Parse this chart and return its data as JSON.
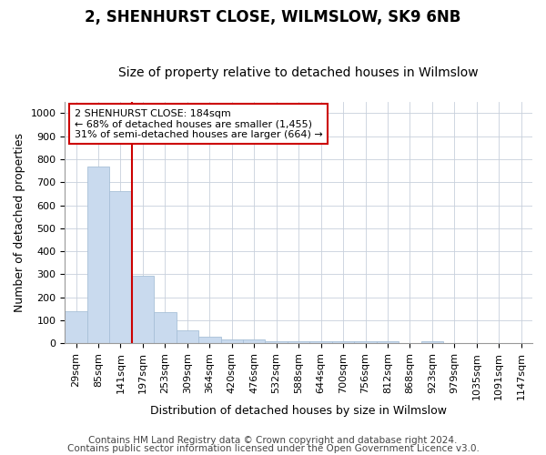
{
  "title": "2, SHENHURST CLOSE, WILMSLOW, SK9 6NB",
  "subtitle": "Size of property relative to detached houses in Wilmslow",
  "xlabel": "Distribution of detached houses by size in Wilmslow",
  "ylabel": "Number of detached properties",
  "bar_labels": [
    "29sqm",
    "85sqm",
    "141sqm",
    "197sqm",
    "253sqm",
    "309sqm",
    "364sqm",
    "420sqm",
    "476sqm",
    "532sqm",
    "588sqm",
    "644sqm",
    "700sqm",
    "756sqm",
    "812sqm",
    "868sqm",
    "923sqm",
    "979sqm",
    "1035sqm",
    "1091sqm",
    "1147sqm"
  ],
  "bar_values": [
    140,
    770,
    660,
    295,
    135,
    55,
    30,
    18,
    18,
    10,
    8,
    8,
    8,
    8,
    8,
    0,
    8,
    0,
    0,
    0,
    0
  ],
  "bar_color": "#c9daee",
  "bar_edge_color": "#a8c0d8",
  "red_line_index": 3,
  "red_line_color": "#cc0000",
  "annotation_text": "2 SHENHURST CLOSE: 184sqm\n← 68% of detached houses are smaller (1,455)\n31% of semi-detached houses are larger (664) →",
  "annotation_box_color": "#ffffff",
  "annotation_box_edge": "#cc0000",
  "ylim": [
    0,
    1050
  ],
  "yticks": [
    0,
    100,
    200,
    300,
    400,
    500,
    600,
    700,
    800,
    900,
    1000
  ],
  "footnote1": "Contains HM Land Registry data © Crown copyright and database right 2024.",
  "footnote2": "Contains public sector information licensed under the Open Government Licence v3.0.",
  "background_color": "#ffffff",
  "grid_color": "#c8d0dc",
  "title_fontsize": 12,
  "subtitle_fontsize": 10,
  "axis_label_fontsize": 9,
  "tick_fontsize": 8,
  "footnote_fontsize": 7.5
}
